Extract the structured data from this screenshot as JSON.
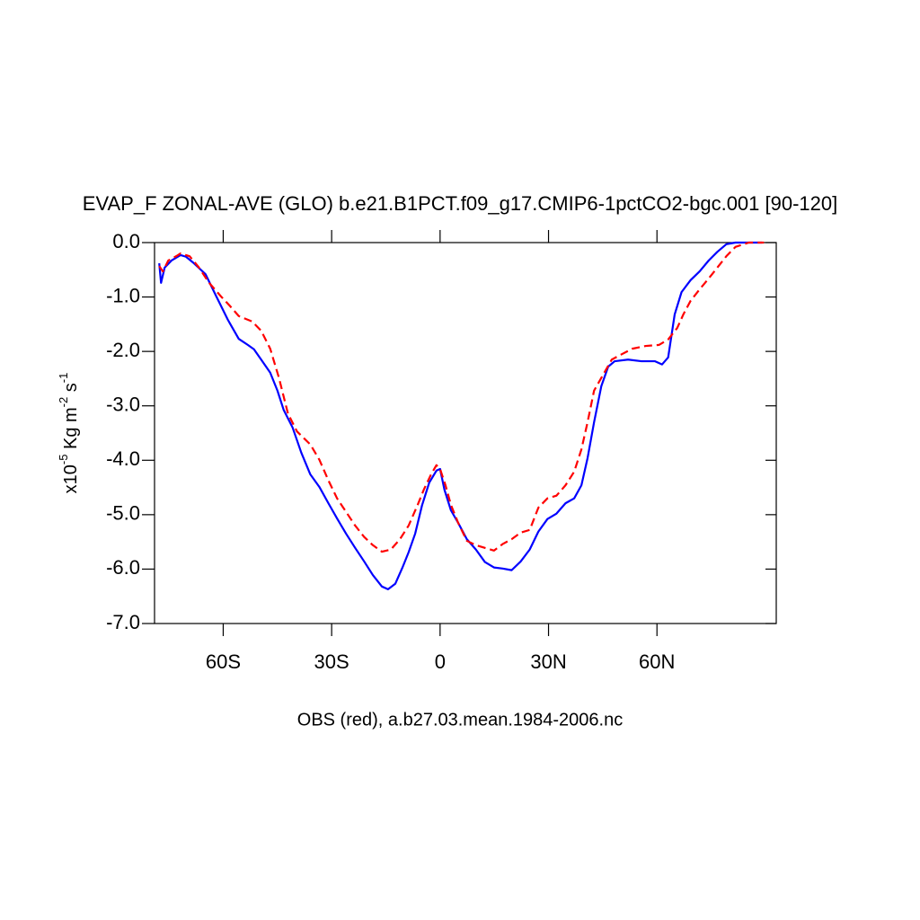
{
  "chart_data": {
    "type": "line",
    "title": "EVAP_F ZONAL-AVE (GLO) b.e21.B1PCT.f09_g17.CMIP6-1pctCO2-bgc.001 [90-120]",
    "subtitle": "OBS (red), a.b27.03.mean.1984-2006.nc",
    "ylabel": [
      "x10",
      "-5",
      " Kg m",
      "-2",
      " s",
      "-1"
    ],
    "xlim": [
      -79,
      93
    ],
    "ylim": [
      -7,
      0
    ],
    "xticks": [
      {
        "value": -60,
        "label": "60S"
      },
      {
        "value": -30,
        "label": "30S"
      },
      0,
      {
        "value": 30,
        "label": "30N"
      },
      {
        "value": 60,
        "label": "60N"
      }
    ],
    "yticks": [
      {
        "value": 0,
        "label": "0.0"
      },
      {
        "value": -1,
        "label": "-1.0"
      },
      {
        "value": -2,
        "label": "-2.0"
      },
      {
        "value": -3,
        "label": "-3.0"
      },
      {
        "value": -4,
        "label": "-4.0"
      },
      {
        "value": -5,
        "label": "-5.0"
      },
      {
        "value": -6,
        "label": "-6.0"
      },
      {
        "value": -7,
        "label": "-7.0"
      }
    ],
    "series": [
      {
        "color": "#0000ff",
        "style": "solid",
        "x": [
          -77.7,
          -77.2,
          -76.2,
          -74.3,
          -71.8,
          -70.3,
          -68.1,
          -64.9,
          -61.9,
          -58.7,
          -55.7,
          -53.2,
          -51.5,
          -49.5,
          -47.0,
          -45.0,
          -43.3,
          -40.8,
          -38.4,
          -35.9,
          -33.4,
          -30.9,
          -28.5,
          -26.0,
          -23.5,
          -21.0,
          -18.6,
          -16.1,
          -14.4,
          -12.4,
          -10.4,
          -8.7,
          -6.9,
          -5.0,
          -3.0,
          -1.0,
          0,
          1.2,
          3.0,
          5.0,
          7.4,
          9.9,
          12.4,
          14.9,
          17.3,
          19.8,
          22.3,
          24.8,
          27.2,
          29.7,
          32.2,
          34.7,
          37.1,
          39.1,
          40.8,
          42.6,
          44.6,
          46.5,
          48.3,
          52.0,
          55.7,
          59.4,
          61.4,
          63.1,
          64.9,
          66.8,
          69.3,
          71.8,
          74.3,
          76.7,
          79.2,
          81.7,
          89.1
        ],
        "values": [
          -0.38,
          -0.74,
          -0.46,
          -0.33,
          -0.23,
          -0.26,
          -0.38,
          -0.58,
          -0.99,
          -1.42,
          -1.77,
          -1.88,
          -1.96,
          -2.15,
          -2.39,
          -2.72,
          -3.07,
          -3.4,
          -3.86,
          -4.26,
          -4.49,
          -4.79,
          -5.07,
          -5.35,
          -5.61,
          -5.86,
          -6.11,
          -6.32,
          -6.37,
          -6.27,
          -5.97,
          -5.69,
          -5.35,
          -4.83,
          -4.41,
          -4.19,
          -4.16,
          -4.54,
          -4.92,
          -5.15,
          -5.45,
          -5.64,
          -5.87,
          -5.97,
          -5.99,
          -6.02,
          -5.86,
          -5.64,
          -5.31,
          -5.08,
          -4.98,
          -4.79,
          -4.7,
          -4.46,
          -3.96,
          -3.3,
          -2.64,
          -2.28,
          -2.18,
          -2.15,
          -2.18,
          -2.18,
          -2.24,
          -2.11,
          -1.32,
          -0.91,
          -0.69,
          -0.53,
          -0.33,
          -0.17,
          -0.03,
          0,
          0
        ]
      },
      {
        "color": "#ff0000",
        "style": "dashed",
        "x": [
          -77.7,
          -76.7,
          -75.2,
          -73.0,
          -71.8,
          -69.3,
          -66.8,
          -63.9,
          -60.6,
          -58.2,
          -55.7,
          -52.0,
          -49.5,
          -47.0,
          -44.6,
          -42.1,
          -39.6,
          -35.9,
          -33.4,
          -30.9,
          -28.5,
          -26.0,
          -23.5,
          -21.0,
          -18.6,
          -16.1,
          -13.6,
          -11.1,
          -8.7,
          -6.2,
          -4.5,
          -2.5,
          -1.0,
          0,
          1.5,
          3.0,
          5.0,
          7.4,
          9.9,
          12.4,
          14.9,
          17.3,
          19.8,
          22.3,
          24.8,
          27.2,
          29.7,
          32.2,
          34.7,
          37.1,
          39.1,
          40.8,
          42.6,
          45.0,
          47.5,
          50.0,
          53.2,
          56.9,
          60.6,
          63.1,
          65.6,
          67.3,
          69.3,
          71.8,
          74.3,
          76.7,
          79.2,
          81.7,
          85.4,
          89.6
        ],
        "values": [
          -0.43,
          -0.53,
          -0.33,
          -0.25,
          -0.2,
          -0.25,
          -0.45,
          -0.74,
          -0.99,
          -1.16,
          -1.35,
          -1.45,
          -1.62,
          -1.95,
          -2.48,
          -3.14,
          -3.47,
          -3.71,
          -3.99,
          -4.37,
          -4.7,
          -4.95,
          -5.2,
          -5.41,
          -5.56,
          -5.68,
          -5.64,
          -5.45,
          -5.2,
          -4.82,
          -4.54,
          -4.26,
          -4.09,
          -4.16,
          -4.46,
          -4.82,
          -5.15,
          -5.48,
          -5.56,
          -5.61,
          -5.66,
          -5.54,
          -5.45,
          -5.33,
          -5.28,
          -4.87,
          -4.7,
          -4.65,
          -4.46,
          -4.21,
          -3.8,
          -3.3,
          -2.72,
          -2.44,
          -2.15,
          -2.06,
          -1.95,
          -1.9,
          -1.88,
          -1.78,
          -1.57,
          -1.32,
          -1.07,
          -0.86,
          -0.66,
          -0.46,
          -0.25,
          -0.08,
          0,
          0
        ]
      }
    ]
  }
}
